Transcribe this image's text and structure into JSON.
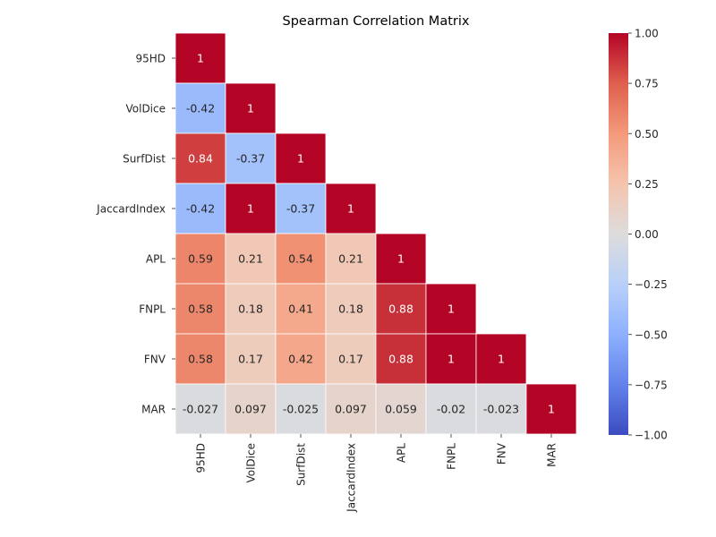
{
  "chart_data": {
    "type": "heatmap",
    "title": "Spearman Correlation Matrix",
    "xlabel": "",
    "ylabel": "",
    "row_labels": [
      "95HD",
      "VolDice",
      "SurfDist",
      "JaccardIndex",
      "APL",
      "FNPL",
      "FNV",
      "MAR"
    ],
    "col_labels": [
      "95HD",
      "VolDice",
      "SurfDist",
      "JaccardIndex",
      "APL",
      "FNPL",
      "FNV",
      "MAR"
    ],
    "mask": "upper-triangle",
    "values": [
      [
        1,
        null,
        null,
        null,
        null,
        null,
        null,
        null
      ],
      [
        -0.42,
        1,
        null,
        null,
        null,
        null,
        null,
        null
      ],
      [
        0.84,
        -0.37,
        1,
        null,
        null,
        null,
        null,
        null
      ],
      [
        -0.42,
        1,
        -0.37,
        1,
        null,
        null,
        null,
        null
      ],
      [
        0.59,
        0.21,
        0.54,
        0.21,
        1,
        null,
        null,
        null
      ],
      [
        0.58,
        0.18,
        0.41,
        0.18,
        0.88,
        1,
        null,
        null
      ],
      [
        0.58,
        0.17,
        0.42,
        0.17,
        0.88,
        1,
        1,
        null
      ],
      [
        -0.027,
        0.097,
        -0.025,
        0.097,
        0.059,
        -0.02,
        -0.023,
        1
      ]
    ],
    "labels": [
      [
        "1",
        null,
        null,
        null,
        null,
        null,
        null,
        null
      ],
      [
        "-0.42",
        "1",
        null,
        null,
        null,
        null,
        null,
        null
      ],
      [
        "0.84",
        "-0.37",
        "1",
        null,
        null,
        null,
        null,
        null
      ],
      [
        "-0.42",
        "1",
        "-0.37",
        "1",
        null,
        null,
        null,
        null
      ],
      [
        "0.59",
        "0.21",
        "0.54",
        "0.21",
        "1",
        null,
        null,
        null
      ],
      [
        "0.58",
        "0.18",
        "0.41",
        "0.18",
        "0.88",
        "1",
        null,
        null
      ],
      [
        "0.58",
        "0.17",
        "0.42",
        "0.17",
        "0.88",
        "1",
        "1",
        null
      ],
      [
        "-0.027",
        "0.097",
        "-0.025",
        "0.097",
        "0.059",
        "-0.02",
        "-0.023",
        "1"
      ]
    ],
    "colormap": "coolwarm",
    "colorbar": {
      "range": [
        -1.0,
        1.0
      ],
      "ticks": [
        -1.0,
        -0.75,
        -0.5,
        -0.25,
        0.0,
        0.25,
        0.5,
        0.75,
        1.0
      ],
      "tick_labels": [
        "−1.00",
        "−0.75",
        "−0.50",
        "−0.25",
        "0.00",
        "0.25",
        "0.50",
        "0.75",
        "1.00"
      ]
    },
    "grid": false,
    "legend": "colorbar-right"
  }
}
